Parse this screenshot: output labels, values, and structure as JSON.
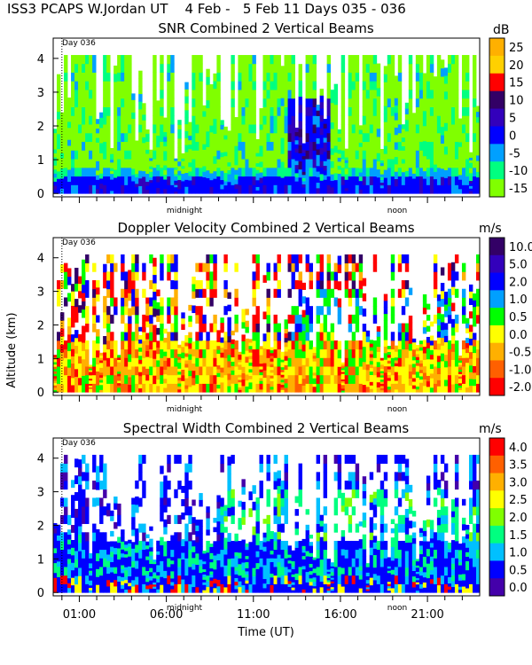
{
  "header": {
    "title": "ISS3 PCAPS W.Jordan UT    4 Feb -   5 Feb 11 Days 035 - 036"
  },
  "axes": {
    "ylabel": "Altitude (km)",
    "xlabel": "Time (UT)",
    "y_ticks": [
      "0",
      "1",
      "2",
      "3",
      "4"
    ],
    "x_ticks": [
      "01:00",
      "06:00",
      "11:00",
      "16:00",
      "21:00"
    ],
    "x_tick_hours": [
      1,
      6,
      11,
      16,
      21
    ],
    "x_range_hours": [
      -0.5,
      24.0
    ],
    "y_range_km": [
      -0.1,
      4.6
    ],
    "midnight_label": "midnight",
    "noon_label": "noon",
    "day_label": "Day 036"
  },
  "chart_data": [
    {
      "type": "heatmap",
      "title": "SNR Combined 2 Vertical Beams",
      "unit": "dB",
      "colorbar_ticks": [
        "25",
        "20",
        "15",
        "10",
        "5",
        "0",
        "-5",
        "-10",
        "-15"
      ],
      "colorbar_colors": [
        "#ffb000",
        "#ffd000",
        "#ff0000",
        "#330066",
        "#3300bb",
        "#0000ff",
        "#00a0ff",
        "#00ff80",
        "#80ff00"
      ],
      "x": "time (UT hours)",
      "y": "altitude (km)",
      "top_km": 4.1,
      "typical": {
        "low_layer_0_to_0.5km": "-5 to 0 dB",
        "upper_0.5_to_4km": "-15 to -10 dB",
        "noon_event_0.5_to_3km_hours_13_to_15": "0 to 10 dB"
      },
      "colors": {
        "low": "#0000ff",
        "mid": "#00a0ff",
        "weak": "#80ff00",
        "medium": "#00ff80",
        "strong": "#330066",
        "peak": "#3300bb"
      }
    },
    {
      "type": "heatmap",
      "title": "Doppler Velocity Combined 2 Vertical Beams",
      "unit": "m/s",
      "colorbar_ticks": [
        "10.0",
        "5.0",
        "2.0",
        "1.0",
        "0.5",
        "0.0",
        "-0.5",
        "-1.0",
        "-2.0"
      ],
      "colorbar_colors": [
        "#330066",
        "#3300bb",
        "#0000ff",
        "#00a0ff",
        "#00ff00",
        "#ffff00",
        "#ffb000",
        "#ff6000",
        "#ff0000"
      ],
      "x": "time (UT hours)",
      "y": "altitude (km)",
      "top_km": 4.1,
      "typical": {
        "low_0_to_1.5km": "-0.5 to 0.5 m/s",
        "upper_2_to_3km_hours_14_to_21": "0.5 to 1.0 m/s"
      }
    },
    {
      "type": "heatmap",
      "title": "Spectral Width Combined 2 Vertical Beams",
      "unit": "m/s",
      "colorbar_ticks": [
        "4.0",
        "3.5",
        "3.0",
        "2.5",
        "2.0",
        "1.5",
        "1.0",
        "0.5",
        "0.0"
      ],
      "colorbar_colors": [
        "#ff0000",
        "#ff6000",
        "#ffb000",
        "#ffff00",
        "#80ff00",
        "#00ff80",
        "#00c0ff",
        "#0000ff",
        "#4400aa"
      ],
      "x": "time (UT hours)",
      "y": "altitude (km)",
      "top_km": 4.1,
      "typical": {
        "low_0_to_1.5km": "0.5 to 1.0 m/s",
        "upper_1.5_to_3km": "1.0 to 2.0 m/s"
      }
    }
  ]
}
